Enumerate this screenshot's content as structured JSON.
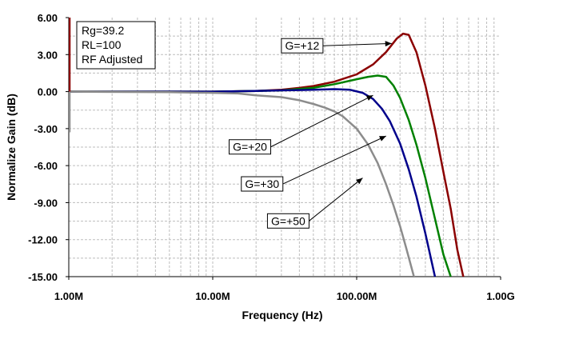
{
  "chart_data": {
    "type": "line",
    "xlabel": "Frequency (Hz)",
    "ylabel": "Normalize Gain (dB)",
    "x_scale": "log",
    "xlim": [
      1000000,
      1000000000
    ],
    "ylim": [
      -15,
      6
    ],
    "grid": true,
    "xticks": [
      {
        "value": 1000000,
        "label": "1.00M"
      },
      {
        "value": 10000000,
        "label": "10.00M"
      },
      {
        "value": 100000000,
        "label": "100.00M"
      },
      {
        "value": 1000000000,
        "label": "1.00G"
      }
    ],
    "yticks": [
      {
        "value": 6,
        "label": "6.00"
      },
      {
        "value": 3,
        "label": "3.00"
      },
      {
        "value": 0,
        "label": "0.00"
      },
      {
        "value": -3,
        "label": "-3.00"
      },
      {
        "value": -6,
        "label": "-6.00"
      },
      {
        "value": -9,
        "label": "-9.00"
      },
      {
        "value": -12,
        "label": "-12.00"
      },
      {
        "value": -15,
        "label": "-15.00"
      }
    ],
    "notes": [
      "Rg=39.2",
      "RL=100",
      "RF Adjusted"
    ],
    "series": [
      {
        "name": "G=+12",
        "color": "#8b0000",
        "x": [
          1000000,
          2000000,
          5000000,
          10000000,
          20000000,
          30000000,
          40000000,
          50000000,
          70000000,
          100000000,
          130000000,
          160000000,
          190000000,
          210000000,
          230000000,
          260000000,
          300000000,
          350000000,
          400000000,
          450000000,
          500000000,
          550000000
        ],
        "y": [
          0,
          0,
          0,
          0,
          0.05,
          0.15,
          0.3,
          0.45,
          0.8,
          1.4,
          2.2,
          3.2,
          4.3,
          4.7,
          4.6,
          3.2,
          0.5,
          -3.0,
          -6.5,
          -9.5,
          -12.8,
          -15
        ]
      },
      {
        "name": "G=+20",
        "color": "#008000",
        "x": [
          1000000,
          5000000,
          10000000,
          20000000,
          30000000,
          50000000,
          70000000,
          100000000,
          120000000,
          140000000,
          160000000,
          180000000,
          200000000,
          230000000,
          260000000,
          300000000,
          350000000,
          400000000,
          450000000
        ],
        "y": [
          0,
          0,
          0,
          0.05,
          0.1,
          0.3,
          0.6,
          1.0,
          1.2,
          1.3,
          1.2,
          0.5,
          -0.5,
          -2.3,
          -4.3,
          -7.0,
          -10.3,
          -13.2,
          -15
        ]
      },
      {
        "name": "G=+30",
        "color": "#00008b",
        "x": [
          1000000,
          5000000,
          10000000,
          20000000,
          30000000,
          50000000,
          70000000,
          90000000,
          110000000,
          130000000,
          150000000,
          170000000,
          200000000,
          230000000,
          260000000,
          300000000,
          350000000
        ],
        "y": [
          0,
          0,
          0,
          0.05,
          0.1,
          0.15,
          0.2,
          0.15,
          -0.1,
          -0.6,
          -1.4,
          -2.4,
          -4.2,
          -6.3,
          -8.5,
          -11.5,
          -15
        ]
      },
      {
        "name": "G=+50",
        "color": "#8c8c8c",
        "x": [
          1000000,
          5000000,
          10000000,
          15000000,
          20000000,
          30000000,
          40000000,
          50000000,
          60000000,
          70000000,
          80000000,
          100000000,
          120000000,
          140000000,
          160000000,
          180000000,
          200000000,
          220000000,
          250000000
        ],
        "y": [
          0,
          -0.05,
          -0.1,
          -0.15,
          -0.3,
          -0.45,
          -0.7,
          -1.0,
          -1.3,
          -1.6,
          -2.0,
          -3.0,
          -4.3,
          -5.8,
          -7.5,
          -9.2,
          -10.9,
          -12.6,
          -15
        ]
      }
    ],
    "annotations": [
      {
        "label": "G=+12",
        "series": 0,
        "target_x": 175000000,
        "target_y": 3.9,
        "box_x": 30000000,
        "box_y": 4.3
      },
      {
        "label": "G=+20",
        "series": 1,
        "target_x": 130000000,
        "target_y": -0.3,
        "box_x": 13000000,
        "box_y": -3.9
      },
      {
        "label": "G=+30",
        "series": 2,
        "target_x": 160000000,
        "target_y": -3.6,
        "box_x": 15800000,
        "box_y": -6.9
      },
      {
        "label": "G=+50",
        "series": 3,
        "target_x": 110000000,
        "target_y": -7.0,
        "box_x": 24000000,
        "box_y": -9.9
      }
    ]
  }
}
